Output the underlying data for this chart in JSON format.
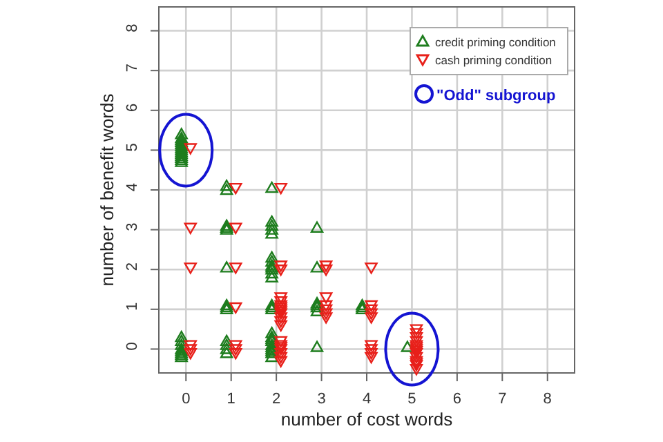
{
  "chart_data": {
    "type": "scatter",
    "xlabel": "number of cost words",
    "ylabel": "number of benefit words",
    "xlim": [
      -0.6,
      8.6
    ],
    "ylim": [
      -0.6,
      8.6
    ],
    "xticks": [
      0,
      1,
      2,
      3,
      4,
      5,
      6,
      7,
      8
    ],
    "yticks": [
      0,
      1,
      2,
      3,
      4,
      5,
      6,
      7,
      8
    ],
    "grid": true,
    "legend": "top right",
    "annotations": [
      "\"Odd\" subgroup"
    ],
    "series": [
      {
        "name": "credit priming condition",
        "color": "#1e7d1e",
        "marker": "triangle",
        "x": [
          -0.1,
          -0.1,
          -0.1,
          -0.1,
          -0.1,
          -0.1,
          -0.1,
          -0.1,
          -0.1,
          -0.1,
          -0.1,
          -0.1,
          -0.1,
          -0.1,
          -0.1,
          -0.1,
          -0.1,
          -0.1,
          -0.1,
          -0.1,
          -0.1,
          -0.1,
          0.9,
          0.9,
          0.9,
          0.9,
          0.9,
          0.9,
          0.9,
          0.9,
          0.9,
          0.9,
          0.9,
          0.9,
          0.9,
          1.9,
          1.9,
          1.9,
          1.9,
          1.9,
          1.9,
          1.9,
          1.9,
          1.9,
          1.9,
          1.9,
          1.9,
          1.9,
          1.9,
          1.9,
          1.9,
          1.9,
          1.9,
          1.9,
          1.9,
          1.9,
          1.9,
          1.9,
          1.9,
          1.9,
          2.9,
          2.9,
          2.9,
          2.9,
          2.9,
          2.9,
          2.9,
          3.9,
          3.9,
          3.9,
          4.9
        ],
        "values": [
          4.7,
          4.75,
          4.8,
          4.85,
          4.9,
          4.95,
          5.0,
          5.05,
          5.1,
          5.15,
          5.2,
          5.25,
          5.3,
          5.4,
          -0.2,
          -0.15,
          -0.1,
          -0.05,
          0,
          0.1,
          0.2,
          0.3,
          4.0,
          4.1,
          3.0,
          3.05,
          3.1,
          2.05,
          1.0,
          1.05,
          1.1,
          -0.1,
          0,
          0.1,
          0.2,
          4.05,
          2.9,
          3.0,
          3.1,
          3.2,
          1.8,
          1.9,
          2.0,
          2.05,
          2.1,
          2.2,
          2.3,
          1.0,
          1.05,
          1.1,
          -0.2,
          -0.1,
          -0.05,
          0,
          0.05,
          0.1,
          0.2,
          0.25,
          0.3,
          0.4,
          3.05,
          2.05,
          0.95,
          1.05,
          1.1,
          1.15,
          0.05,
          1.0,
          1.05,
          1.1,
          0.05
        ]
      },
      {
        "name": "cash priming condition",
        "color": "#e8201a",
        "marker": "triangle-down",
        "x": [
          0.1,
          0.1,
          0.1,
          0.1,
          0.1,
          0.1,
          1.1,
          1.1,
          1.1,
          1.1,
          1.1,
          1.1,
          1.1,
          2.1,
          2.1,
          2.1,
          2.1,
          2.1,
          2.1,
          2.1,
          2.1,
          2.1,
          2.1,
          2.1,
          2.1,
          2.1,
          2.1,
          2.1,
          2.1,
          2.1,
          2.1,
          2.1,
          2.1,
          3.1,
          3.1,
          3.1,
          3.1,
          3.1,
          3.1,
          3.1,
          4.1,
          4.1,
          4.1,
          4.1,
          4.1,
          4.1,
          4.1,
          4.1,
          4.1,
          5.1,
          5.1,
          5.1,
          5.1,
          5.1,
          5.1,
          5.1,
          5.1,
          5.1,
          5.1,
          5.1,
          5.1,
          5.1,
          5.1
        ],
        "values": [
          5.05,
          3.05,
          2.05,
          -0.1,
          0,
          0.1,
          4.05,
          3.05,
          2.05,
          1.05,
          -0.1,
          0,
          0.1,
          4.05,
          2.0,
          2.1,
          0.6,
          0.7,
          0.8,
          0.9,
          0.95,
          1.0,
          1.05,
          1.1,
          1.2,
          1.3,
          -0.3,
          -0.2,
          -0.1,
          0,
          0.05,
          0.1,
          0.2,
          2.0,
          2.1,
          0.8,
          0.9,
          1.0,
          1.1,
          1.3,
          2.05,
          0.8,
          0.9,
          1.0,
          1.1,
          -0.2,
          -0.1,
          0,
          0.1,
          -0.5,
          -0.4,
          -0.35,
          -0.3,
          -0.2,
          -0.1,
          -0.05,
          0,
          0.05,
          0.1,
          0.2,
          0.3,
          0.4,
          0.5
        ]
      }
    ]
  }
}
